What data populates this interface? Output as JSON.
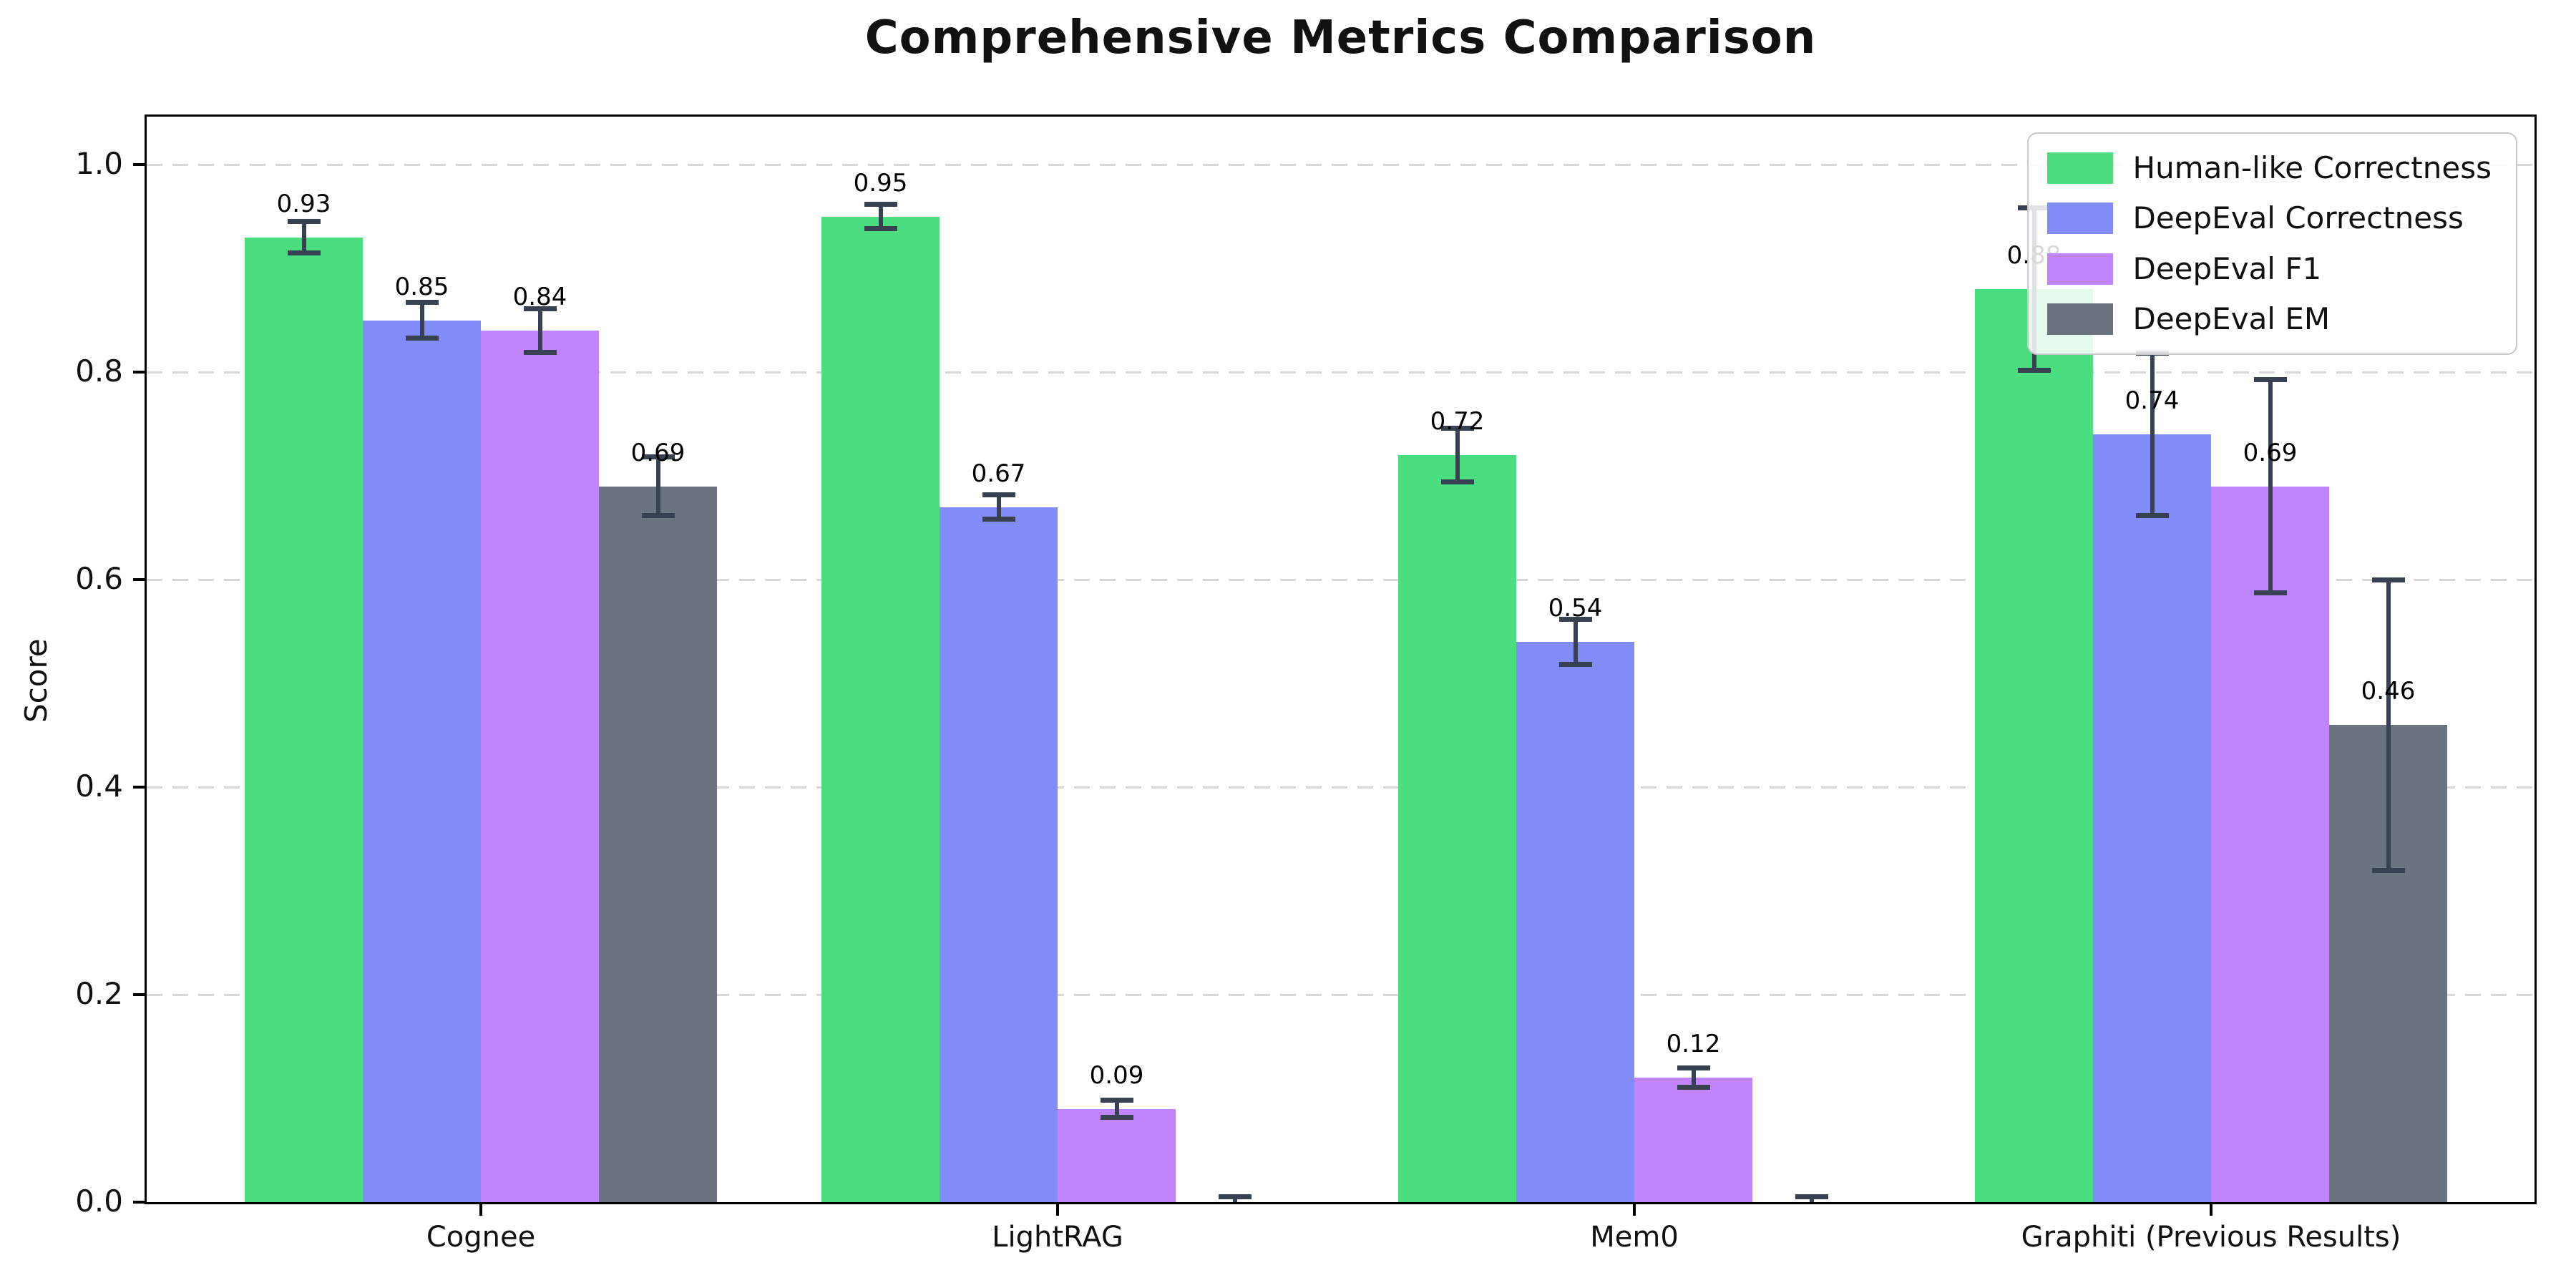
{
  "chart_data": {
    "type": "bar",
    "title": "Comprehensive Metrics Comparison",
    "ylabel": "Score",
    "xlabel": "",
    "categories": [
      "Cognee",
      "LightRAG",
      "Mem0",
      "Graphiti (Previous Results)"
    ],
    "series": [
      {
        "name": "Human-like Correctness",
        "color": "#4ade80",
        "values": [
          0.93,
          0.95,
          0.72,
          0.88
        ],
        "errors": [
          0.015,
          0.012,
          0.026,
          0.078
        ],
        "labels": [
          "0.93",
          "0.95",
          "0.72",
          "0.88"
        ]
      },
      {
        "name": "DeepEval Correctness",
        "color": "#818cf8",
        "values": [
          0.85,
          0.67,
          0.54,
          0.74
        ],
        "errors": [
          0.017,
          0.012,
          0.022,
          0.078
        ],
        "labels": [
          "0.85",
          "0.67",
          "0.54",
          "0.74"
        ]
      },
      {
        "name": "DeepEval F1",
        "color": "#c084fc",
        "values": [
          0.84,
          0.09,
          0.12,
          0.69
        ],
        "errors": [
          0.021,
          0.008,
          0.009,
          0.103
        ],
        "labels": [
          "0.84",
          "0.09",
          "0.12",
          "0.69"
        ]
      },
      {
        "name": "DeepEval EM",
        "color": "#6b7280",
        "values": [
          0.69,
          0.0,
          0.0,
          0.46
        ],
        "errors": [
          0.028,
          0.005,
          0.005,
          0.14
        ],
        "labels": [
          "0.69",
          "",
          "",
          "0.46"
        ]
      }
    ],
    "yticks": [
      "0.0",
      "0.2",
      "0.4",
      "0.6",
      "0.8",
      "1.0"
    ],
    "ylim": [
      0,
      1.05
    ],
    "grid": "dashed-horizontal",
    "legend_position": "upper-right",
    "error_bar_color": "#374151"
  }
}
